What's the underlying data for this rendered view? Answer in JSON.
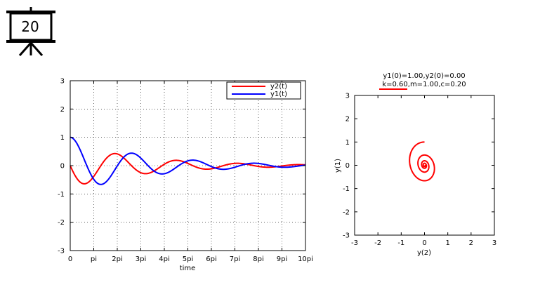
{
  "slide": {
    "number": "20",
    "icon": "presentation-board-icon"
  },
  "chart_data": [
    {
      "type": "line",
      "title": "",
      "xlabel": "time",
      "ylabel": "",
      "xlim": [
        0,
        31.4159
      ],
      "ylim": [
        -3,
        3
      ],
      "xticks": [
        0,
        3.1416,
        6.2832,
        9.4248,
        12.5664,
        15.708,
        18.8496,
        21.9911,
        25.1327,
        28.2743,
        31.4159
      ],
      "xtick_labels": [
        "0",
        "pi",
        "2pi",
        "3pi",
        "4pi",
        "5pi",
        "6pi",
        "7pi",
        "8pi",
        "9pi",
        "10pi"
      ],
      "yticks": [
        -3,
        -2,
        -1,
        0,
        1,
        2,
        3
      ],
      "ytick_labels": [
        "-3",
        "-2",
        "-1",
        "0",
        "1",
        "2",
        "3"
      ],
      "grid": true,
      "legend_position": "top-right",
      "model": {
        "k": 0.6,
        "m": 1.0,
        "c": 0.2,
        "y1_0": 1.0,
        "y2_0": 0.0
      },
      "series": [
        {
          "name": "y2(t)",
          "color": "#ff0000"
        },
        {
          "name": "y1(t)",
          "color": "#0000ff"
        }
      ]
    },
    {
      "type": "line",
      "title_lines": [
        "y1(0)=1.00,y2(0)=0.00",
        "k=0.60,m=1.00,c=0.20"
      ],
      "xlabel": "y(2)",
      "ylabel": "y(1)",
      "xlim": [
        -3,
        3
      ],
      "ylim": [
        -3,
        3
      ],
      "xticks": [
        -3,
        -2,
        -1,
        0,
        1,
        2,
        3
      ],
      "xtick_labels": [
        "-3",
        "-2",
        "-1",
        "0",
        "1",
        "2",
        "3"
      ],
      "yticks": [
        -3,
        -2,
        -1,
        0,
        1,
        2,
        3
      ],
      "ytick_labels": [
        "-3",
        "-2",
        "-1",
        "0",
        "1",
        "2",
        "3"
      ],
      "grid": false,
      "series": [
        {
          "name": "",
          "color": "#ff0000"
        }
      ]
    }
  ]
}
